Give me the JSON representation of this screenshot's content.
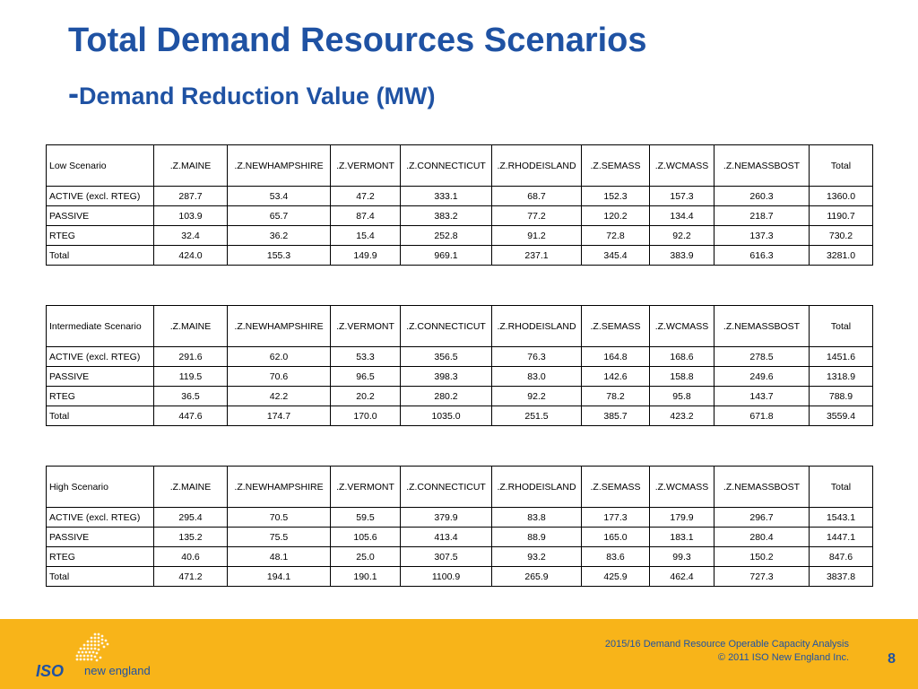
{
  "title": "Total Demand Resources Scenarios",
  "subtitle_dash": "-",
  "subtitle": "Demand Reduction Value (MW)",
  "columns": [
    ".Z.MAINE",
    ".Z.NEWHAMPSHIRE",
    ".Z.VERMONT",
    ".Z.CONNECTICUT",
    ".Z.RHODEISLAND",
    ".Z.SEMASS",
    ".Z.WCMASS",
    ".Z.NEMASSBOST",
    "Total"
  ],
  "tables": [
    {
      "label": "Low Scenario",
      "rows": [
        {
          "label": "ACTIVE (excl. RTEG)",
          "values": [
            "287.7",
            "53.4",
            "47.2",
            "333.1",
            "68.7",
            "152.3",
            "157.3",
            "260.3",
            "1360.0"
          ]
        },
        {
          "label": "PASSIVE",
          "values": [
            "103.9",
            "65.7",
            "87.4",
            "383.2",
            "77.2",
            "120.2",
            "134.4",
            "218.7",
            "1190.7"
          ]
        },
        {
          "label": "RTEG",
          "values": [
            "32.4",
            "36.2",
            "15.4",
            "252.8",
            "91.2",
            "72.8",
            "92.2",
            "137.3",
            "730.2"
          ]
        },
        {
          "label": "Total",
          "values": [
            "424.0",
            "155.3",
            "149.9",
            "969.1",
            "237.1",
            "345.4",
            "383.9",
            "616.3",
            "3281.0"
          ]
        }
      ]
    },
    {
      "label": "Intermediate Scenario",
      "rows": [
        {
          "label": "ACTIVE (excl. RTEG)",
          "values": [
            "291.6",
            "62.0",
            "53.3",
            "356.5",
            "76.3",
            "164.8",
            "168.6",
            "278.5",
            "1451.6"
          ]
        },
        {
          "label": "PASSIVE",
          "values": [
            "119.5",
            "70.6",
            "96.5",
            "398.3",
            "83.0",
            "142.6",
            "158.8",
            "249.6",
            "1318.9"
          ]
        },
        {
          "label": "RTEG",
          "values": [
            "36.5",
            "42.2",
            "20.2",
            "280.2",
            "92.2",
            "78.2",
            "95.8",
            "143.7",
            "788.9"
          ]
        },
        {
          "label": "Total",
          "values": [
            "447.6",
            "174.7",
            "170.0",
            "1035.0",
            "251.5",
            "385.7",
            "423.2",
            "671.8",
            "3559.4"
          ]
        }
      ]
    },
    {
      "label": "High Scenario",
      "rows": [
        {
          "label": "ACTIVE (excl. RTEG)",
          "values": [
            "295.4",
            "70.5",
            "59.5",
            "379.9",
            "83.8",
            "177.3",
            "179.9",
            "296.7",
            "1543.1"
          ]
        },
        {
          "label": "PASSIVE",
          "values": [
            "135.2",
            "75.5",
            "105.6",
            "413.4",
            "88.9",
            "165.0",
            "183.1",
            "280.4",
            "1447.1"
          ]
        },
        {
          "label": "RTEG",
          "values": [
            "40.6",
            "48.1",
            "25.0",
            "307.5",
            "93.2",
            "83.6",
            "99.3",
            "150.2",
            "847.6"
          ]
        },
        {
          "label": "Total",
          "values": [
            "471.2",
            "194.1",
            "190.1",
            "1100.9",
            "265.9",
            "425.9",
            "462.4",
            "727.3",
            "3837.8"
          ]
        }
      ]
    }
  ],
  "footer": {
    "logo_iso": "ISO",
    "logo_ne": "new england",
    "line1": "2015/16 Demand Resource Operable Capacity Analysis",
    "line2": "© 2011 ISO New England Inc.",
    "page": "8",
    "colors": {
      "bar": "#f8b419",
      "brand_blue": "#1f52a3"
    }
  }
}
